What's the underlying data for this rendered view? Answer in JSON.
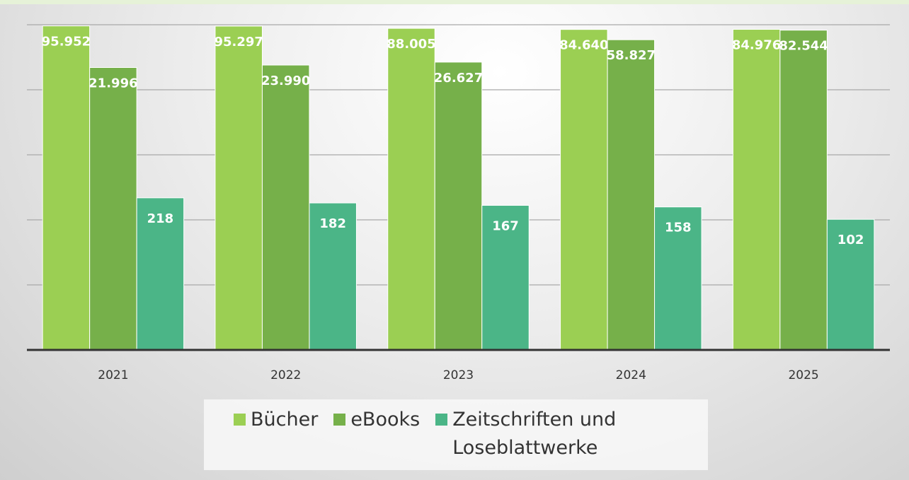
{
  "chart_data": {
    "type": "bar",
    "categories": [
      "2021",
      "2022",
      "2023",
      "2024",
      "2025"
    ],
    "series": [
      {
        "name": "Bücher",
        "color": "#9bcf53",
        "values": [
          95952,
          95297,
          88005,
          84640,
          84976
        ],
        "value_labels": [
          "95.952",
          "95.297",
          "88.005",
          "84.640",
          "84.976"
        ]
      },
      {
        "name": "eBooks",
        "color": "#76b04a",
        "values": [
          21996,
          23990,
          26627,
          58827,
          82544
        ],
        "value_labels": [
          "21.996",
          "23.990",
          "26.627",
          "58.827",
          "82.544"
        ]
      },
      {
        "name": "Zeitschriften und Loseblattwerke",
        "color": "#4bb587",
        "values": [
          218,
          182,
          167,
          158,
          102
        ]
      }
    ],
    "log_scale": true,
    "ylim": [
      1,
      100000
    ],
    "yticks": [
      1,
      10,
      100,
      1000,
      10000,
      100000
    ],
    "grid": true
  }
}
